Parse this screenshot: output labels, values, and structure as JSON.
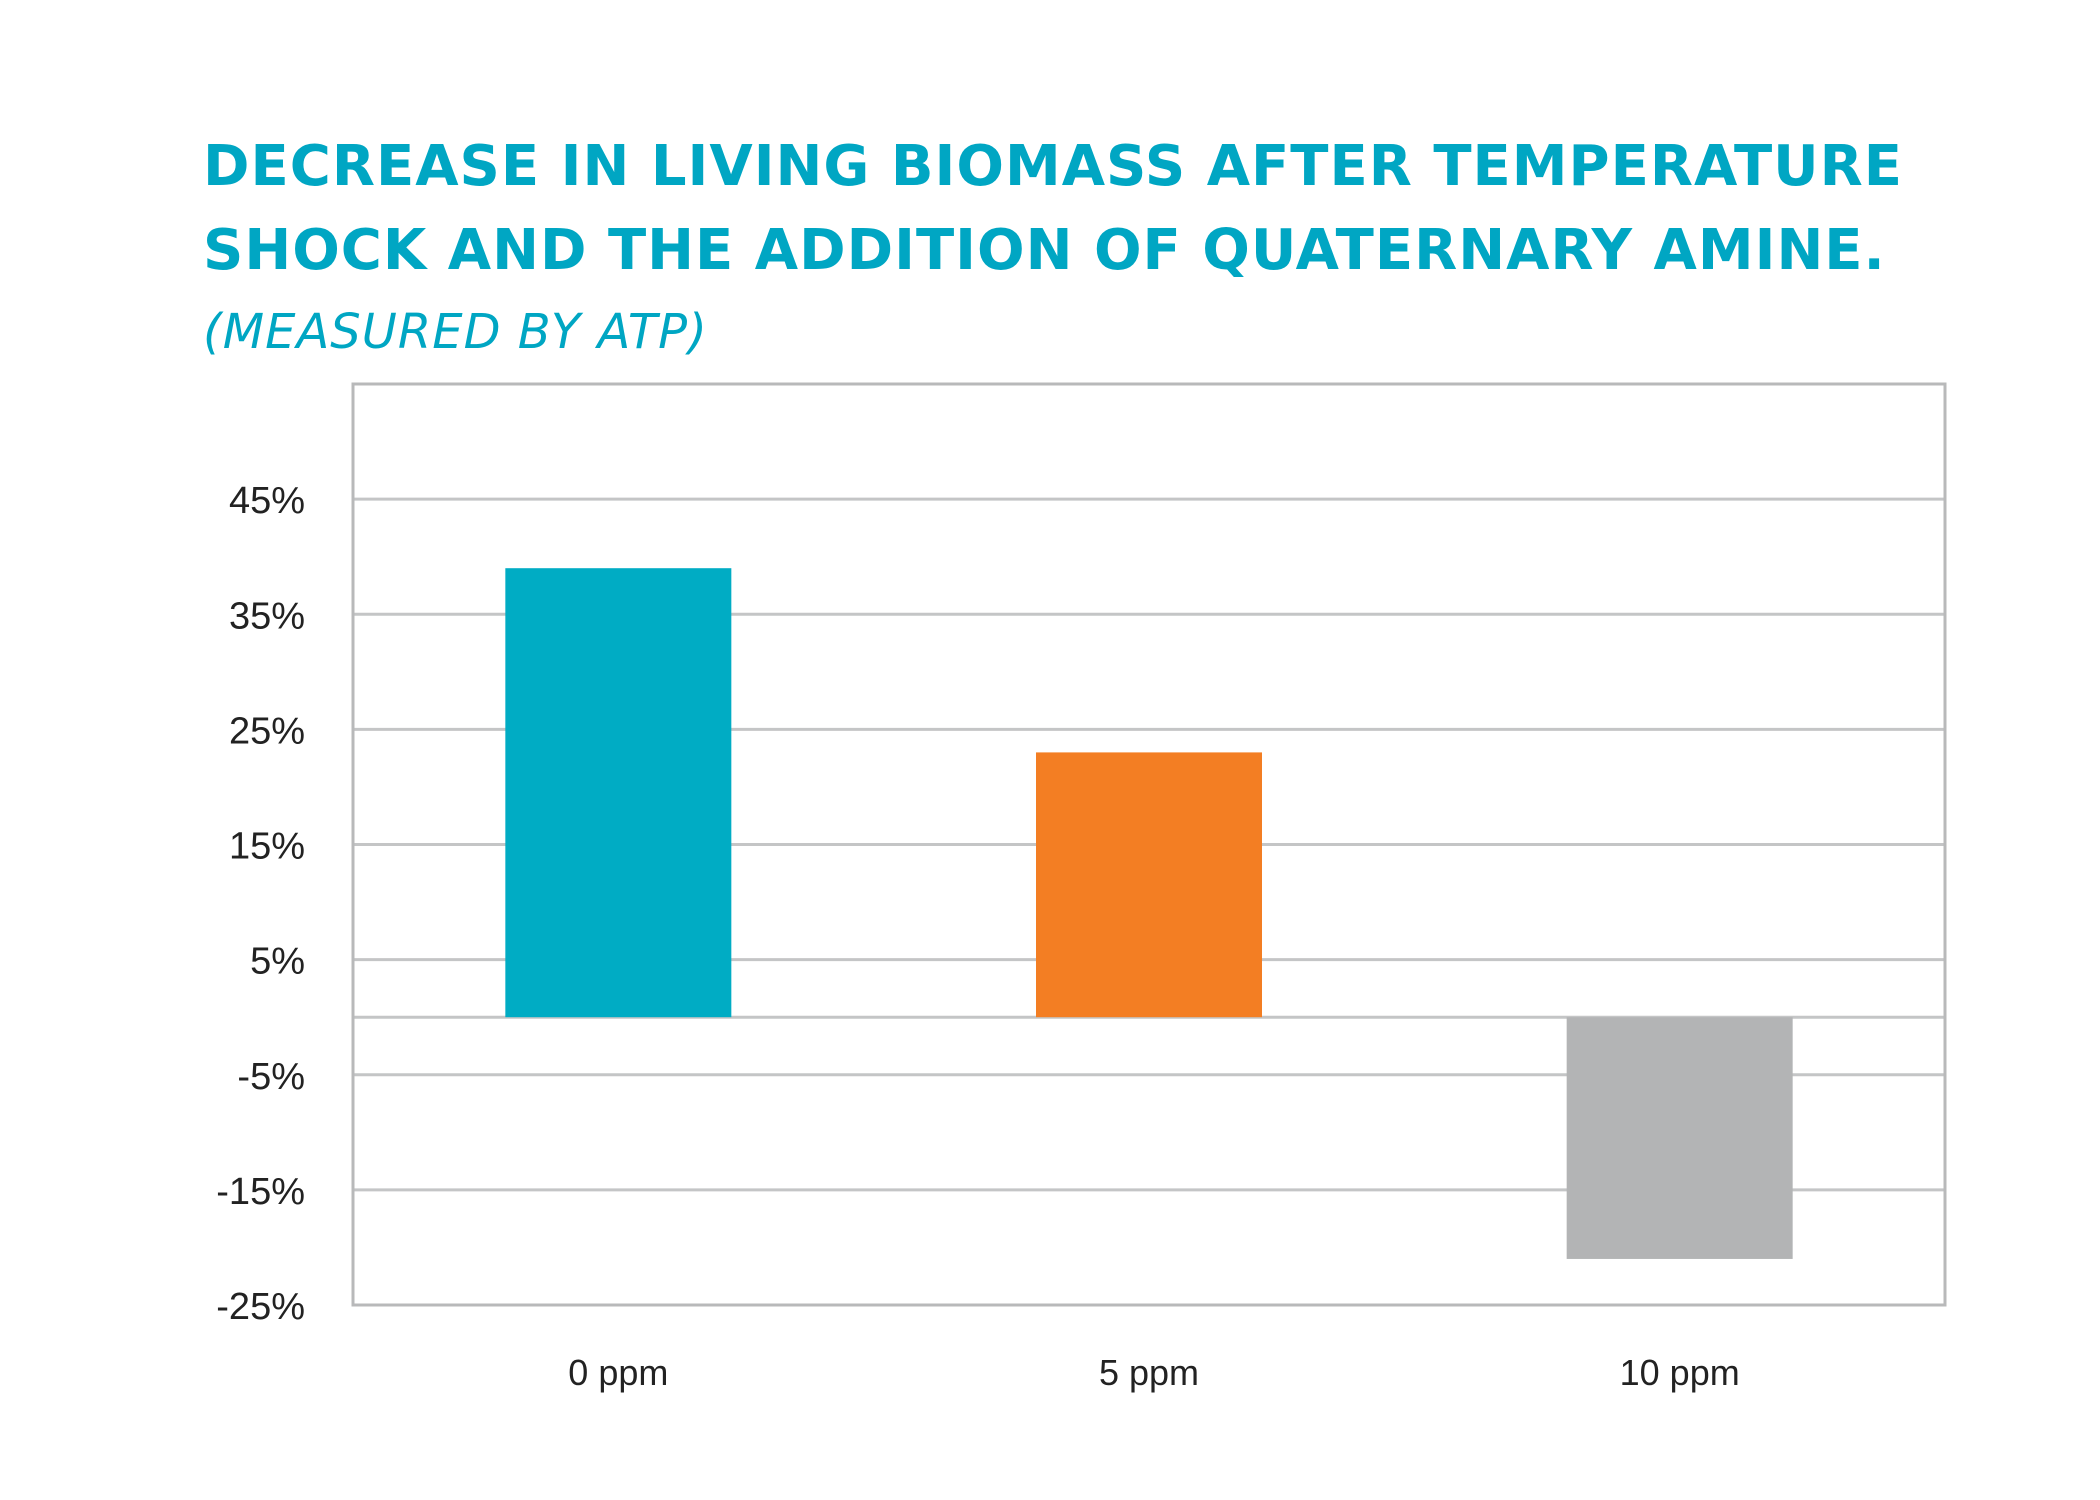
{
  "chart_data": {
    "type": "bar",
    "title_lines": [
      "DECREASE IN LIVING BIOMASS AFTER TEMPERATURE",
      "SHOCK AND THE ADDITION OF QUATERNARY AMINE."
    ],
    "subtitle": "(MEASURED BY ATP)",
    "xlabel": "",
    "ylabel": "",
    "categories": [
      "0 ppm",
      "5 ppm",
      "10 ppm"
    ],
    "values": [
      39,
      23,
      -21
    ],
    "colors": [
      "#00acc4",
      "#f37e23",
      "#b3b4b5"
    ],
    "ylim": [
      -25,
      55
    ],
    "yticks": [
      45,
      35,
      25,
      15,
      5,
      -5,
      -15,
      -25
    ],
    "ytick_labels": [
      "45%",
      "35%",
      "25%",
      "15%",
      "5%",
      "-5%",
      "-15%",
      "-25%"
    ],
    "grid": true,
    "zero_line": true,
    "legend": "none"
  }
}
